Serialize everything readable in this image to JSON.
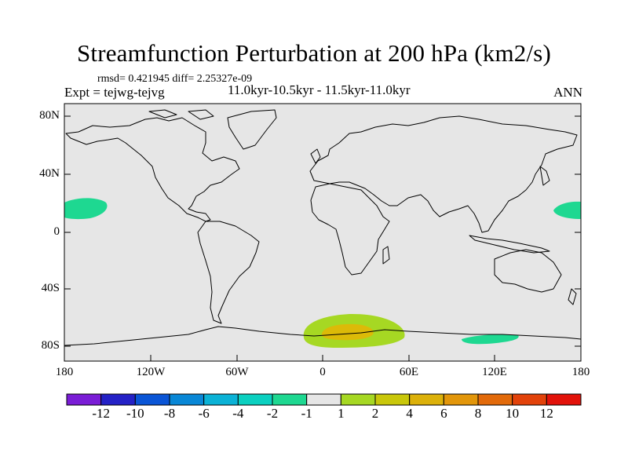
{
  "title": "Streamfunction Perturbation at 200 hPa (km2/s)",
  "stats": "rmsd= 0.421945 diff= 2.25327e-09",
  "experiment": "Expt = tejwg-tejvg",
  "period": "11.0kyr-10.5kyr - 11.5kyr-11.0kyr",
  "season": "ANN",
  "lat_labels": [
    "80N",
    "40N",
    "0",
    "40S",
    "80S"
  ],
  "lon_labels": [
    "180",
    "120W",
    "60W",
    "0",
    "60E",
    "120E",
    "180"
  ],
  "colors": {
    "background": "#e6e6e6",
    "coast": "#000000",
    "neg_light": "#1ed891",
    "pos_light": "#a6d823",
    "pos_mid": "#dcba08"
  },
  "colorbar": {
    "colors": [
      "#7a1dd6",
      "#2421c6",
      "#0a55d6",
      "#0987d6",
      "#0bb2d6",
      "#0bd0c0",
      "#1ed891",
      "#e6e6e6",
      "#a6d823",
      "#c9c70a",
      "#dcb10a",
      "#e2960a",
      "#e26a0a",
      "#e2420a",
      "#e2120a"
    ],
    "labels": [
      "-12",
      "-10",
      "-8",
      "-6",
      "-4",
      "-2",
      "-1",
      "1",
      "2",
      "4",
      "6",
      "8",
      "10",
      "12"
    ]
  }
}
